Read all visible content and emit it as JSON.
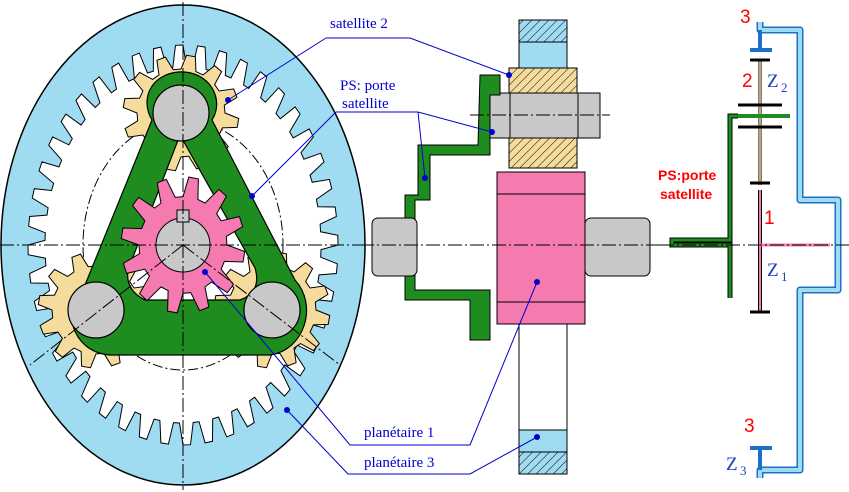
{
  "labels": {
    "satellite2": "satellite 2",
    "ps_line1": "PS: porte",
    "ps_line2": "satellite",
    "planetaire1": "planétaire 1",
    "planetaire3": "planétaire 3"
  },
  "schematic": {
    "ps_line1": "PS:porte",
    "ps_line2": "satellite",
    "n3_top": "3",
    "n2": "2",
    "n1": "1",
    "n3_bottom": "3",
    "z2": "Z",
    "z2_sub": "2",
    "z1": "Z",
    "z1_sub": "1",
    "z3": "Z",
    "z3_sub": "3"
  },
  "colors": {
    "ring": "#9fdcf2",
    "satellite": "#f5dc9c",
    "carrier": "#1e8c1e",
    "sun": "#f57ab0",
    "shaft": "#c8c8c8",
    "label": "#0000cc",
    "schematic_label": "#ff0000"
  }
}
